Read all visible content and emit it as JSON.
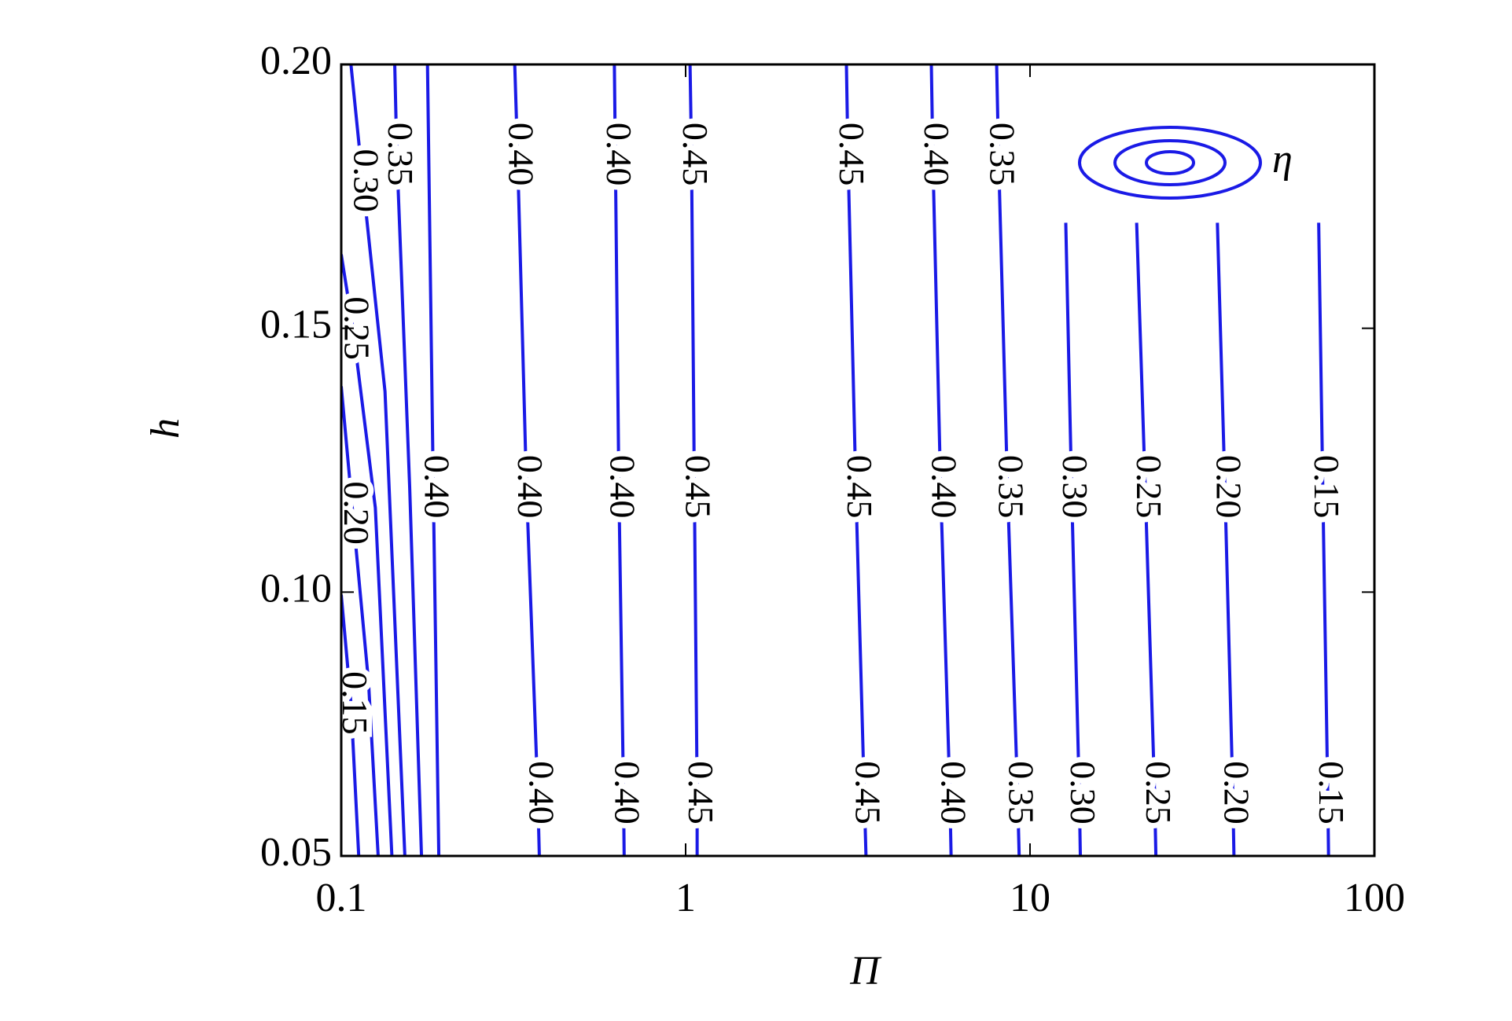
{
  "chart_data": {
    "type": "contour",
    "xlabel": "Π",
    "ylabel": "h",
    "xscale": "log",
    "xlim": [
      0.1,
      100
    ],
    "ylim": [
      0.05,
      0.2
    ],
    "xticks": [
      0.1,
      1,
      10,
      100
    ],
    "yticks": [
      0.05,
      {
        "value": 0.1,
        "label": "0.10"
      },
      0.15,
      {
        "value": 0.2,
        "label": "0.20"
      }
    ],
    "color": "#1a1ae6",
    "legend": "upper right",
    "legend_label": "η",
    "contours": [
      {
        "level": 0.15,
        "x": [
          0.1,
          0.1067,
          0.1124
        ],
        "y": [
          0.0995,
          0.079,
          0.05
        ],
        "labels": [
          null,
          "0.15",
          null
        ]
      },
      {
        "level": 0.2,
        "x": [
          0.1,
          0.108,
          0.12,
          0.128
        ],
        "y": [
          0.139,
          0.115,
          0.083,
          0.05
        ],
        "labels": [
          null,
          "0.20",
          null,
          null
        ]
      },
      {
        "level": 0.25,
        "x": [
          0.1,
          0.1081,
          0.1256,
          0.1403
        ],
        "y": [
          0.164,
          0.15,
          0.116,
          0.05
        ],
        "labels": [
          null,
          "0.25",
          null,
          null
        ]
      },
      {
        "level": 0.3,
        "x": [
          0.1067,
          0.1154,
          0.134,
          0.153
        ],
        "y": [
          0.2,
          0.178,
          0.138,
          0.05
        ],
        "labels": [
          null,
          "0.30",
          null,
          null
        ]
      },
      {
        "level": 0.35,
        "x": [
          0.143,
          0.145,
          0.158,
          0.171
        ],
        "y": [
          0.2,
          0.183,
          0.12,
          0.05
        ],
        "labels": [
          null,
          "0.35",
          null,
          null
        ]
      },
      {
        "level": 0.4,
        "x": [
          0.178,
          0.185,
          0.192
        ],
        "y": [
          0.2,
          0.12,
          0.05
        ],
        "labels": [
          null,
          "0.40",
          null
        ]
      },
      {
        "level": 0.4,
        "x": [
          0.319,
          0.325,
          0.345,
          0.372,
          0.376
        ],
        "y": [
          0.2,
          0.183,
          0.12,
          0.062,
          0.05
        ],
        "labels": [
          null,
          "0.40",
          "0.40",
          "0.40",
          null
        ]
      },
      {
        "level": 0.4,
        "x": [
          0.621,
          0.625,
          0.64,
          0.66,
          0.663
        ],
        "y": [
          0.2,
          0.183,
          0.12,
          0.062,
          0.05
        ],
        "labels": [
          null,
          "0.40",
          "0.40",
          "0.40",
          null
        ]
      },
      {
        "level": 0.45,
        "x": [
          1.03,
          1.04,
          1.06,
          1.08,
          1.08
        ],
        "y": [
          0.2,
          0.183,
          0.12,
          0.062,
          0.05
        ],
        "labels": [
          null,
          "0.45",
          "0.45",
          "0.45",
          null
        ]
      },
      {
        "level": 0.45,
        "x": [
          2.93,
          2.96,
          3.12,
          3.3,
          3.34
        ],
        "y": [
          0.2,
          0.183,
          0.12,
          0.062,
          0.05
        ],
        "labels": [
          null,
          "0.45",
          "0.45",
          "0.45",
          null
        ]
      },
      {
        "level": 0.4,
        "x": [
          5.17,
          5.22,
          5.5,
          5.85,
          5.9
        ],
        "y": [
          0.2,
          0.183,
          0.12,
          0.062,
          0.05
        ],
        "labels": [
          null,
          "0.40",
          "0.40",
          "0.40",
          null
        ]
      },
      {
        "level": 0.35,
        "x": [
          8.0,
          8.1,
          8.6,
          9.2,
          9.3
        ],
        "y": [
          0.2,
          0.183,
          0.12,
          0.062,
          0.05
        ],
        "labels": [
          null,
          "0.35",
          "0.35",
          "0.35",
          null
        ]
      },
      {
        "level": 0.3,
        "x": [
          12.7,
          13.2,
          13.9,
          14.0
        ],
        "y": [
          0.17,
          0.12,
          0.062,
          0.05
        ],
        "labels": [
          null,
          "0.30",
          "0.30",
          null
        ]
      },
      {
        "level": 0.25,
        "x": [
          20.4,
          21.6,
          23.0,
          23.2
        ],
        "y": [
          0.17,
          0.12,
          0.062,
          0.05
        ],
        "labels": [
          null,
          "0.25",
          "0.25",
          null
        ]
      },
      {
        "level": 0.2,
        "x": [
          35.0,
          36.8,
          38.8,
          39.1
        ],
        "y": [
          0.17,
          0.12,
          0.062,
          0.05
        ],
        "labels": [
          null,
          "0.20",
          "0.20",
          null
        ]
      },
      {
        "level": 0.15,
        "x": [
          68.9,
          70.8,
          73.2,
          73.6
        ],
        "y": [
          0.17,
          0.12,
          0.062,
          0.05
        ],
        "labels": [
          null,
          "0.15",
          "0.15",
          null
        ]
      }
    ]
  }
}
